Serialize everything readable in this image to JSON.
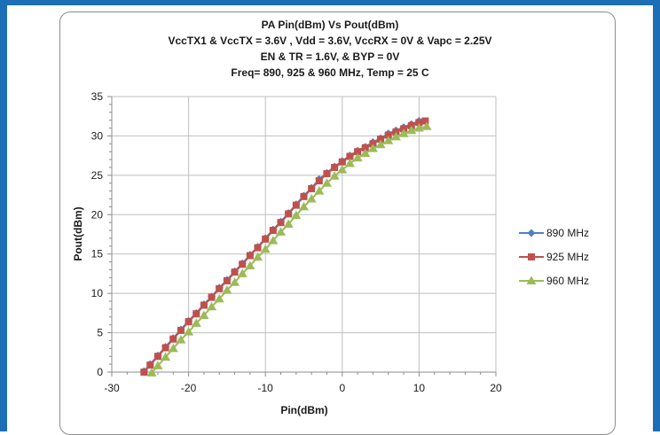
{
  "chart_data": {
    "type": "line",
    "title_lines": [
      "PA Pin(dBm) Vs Pout(dBm)",
      "VccTX1 & VccTX = 3.6V , Vdd  = 3.6V, VccRX = 0V & Vapc = 2.25V",
      "EN & TR = 1.6V, & BYP = 0V",
      "Freq= 890, 925 & 960 MHz, Temp = 25 C"
    ],
    "xlabel": "Pin(dBm)",
    "ylabel": "Pout(dBm)",
    "xlim": [
      -30,
      20
    ],
    "ylim": [
      0,
      35
    ],
    "xticks": [
      -30,
      -20,
      -10,
      0,
      10,
      20
    ],
    "yticks": [
      0,
      5,
      10,
      15,
      20,
      25,
      30,
      35
    ],
    "grid": true,
    "legend_position": "right",
    "series": [
      {
        "name": "890 MHz",
        "color": "#4f81bd",
        "marker": "diamond",
        "x": [
          -25.8,
          -25,
          -24,
          -23,
          -22,
          -21,
          -20,
          -19,
          -18,
          -17,
          -16,
          -15,
          -14,
          -13,
          -12,
          -11,
          -10,
          -9,
          -8,
          -7,
          -6,
          -5,
          -4,
          -3,
          -2,
          -1,
          0,
          1,
          2,
          3,
          4,
          5,
          6,
          7,
          8,
          9,
          10
        ],
        "y": [
          0.1,
          1.0,
          2.1,
          3.2,
          4.3,
          5.4,
          6.5,
          7.5,
          8.6,
          9.6,
          10.7,
          11.7,
          12.8,
          13.8,
          14.9,
          15.9,
          17.0,
          18.1,
          19.1,
          20.2,
          21.3,
          22.4,
          23.4,
          24.5,
          25.3,
          26.1,
          26.8,
          27.5,
          28.1,
          28.6,
          29.2,
          29.7,
          30.3,
          30.7,
          31.1,
          31.5,
          31.9
        ]
      },
      {
        "name": "925 MHz",
        "color": "#c0504d",
        "marker": "square",
        "x": [
          -25.8,
          -25,
          -24,
          -23,
          -22,
          -21,
          -20,
          -19,
          -18,
          -17,
          -16,
          -15,
          -14,
          -13,
          -12,
          -11,
          -10,
          -9,
          -8,
          -7,
          -6,
          -5,
          -4,
          -3,
          -2,
          -1,
          0,
          1,
          2,
          3,
          4,
          5,
          6,
          7,
          8,
          9,
          10,
          10.8
        ],
        "y": [
          0.0,
          0.9,
          2.0,
          3.1,
          4.2,
          5.3,
          6.4,
          7.4,
          8.5,
          9.5,
          10.6,
          11.6,
          12.7,
          13.7,
          14.8,
          15.8,
          16.9,
          18.0,
          19.0,
          20.1,
          21.2,
          22.3,
          23.3,
          24.3,
          25.2,
          26.0,
          26.7,
          27.4,
          28.0,
          28.5,
          29.0,
          29.6,
          30.1,
          30.5,
          30.9,
          31.3,
          31.7,
          31.9
        ]
      },
      {
        "name": "960 MHz",
        "color": "#9bbb59",
        "marker": "triangle",
        "x": [
          -24.8,
          -24,
          -23,
          -22,
          -21,
          -20,
          -19,
          -18,
          -17,
          -16,
          -15,
          -14,
          -13,
          -12,
          -11,
          -10,
          -9,
          -8,
          -7,
          -6,
          -5,
          -4,
          -3,
          -2,
          -1,
          0,
          1,
          2,
          3,
          4,
          5,
          6,
          7,
          8,
          9,
          10,
          11
        ],
        "y": [
          -0.1,
          0.8,
          1.9,
          3.0,
          4.1,
          5.1,
          6.2,
          7.2,
          8.3,
          9.3,
          10.4,
          11.4,
          12.5,
          13.5,
          14.6,
          15.6,
          16.7,
          17.8,
          18.8,
          19.9,
          21.0,
          22.0,
          23.0,
          24.0,
          24.9,
          25.7,
          26.5,
          27.2,
          27.8,
          28.4,
          28.9,
          29.4,
          29.9,
          30.3,
          30.7,
          31.0,
          31.2
        ]
      }
    ]
  }
}
